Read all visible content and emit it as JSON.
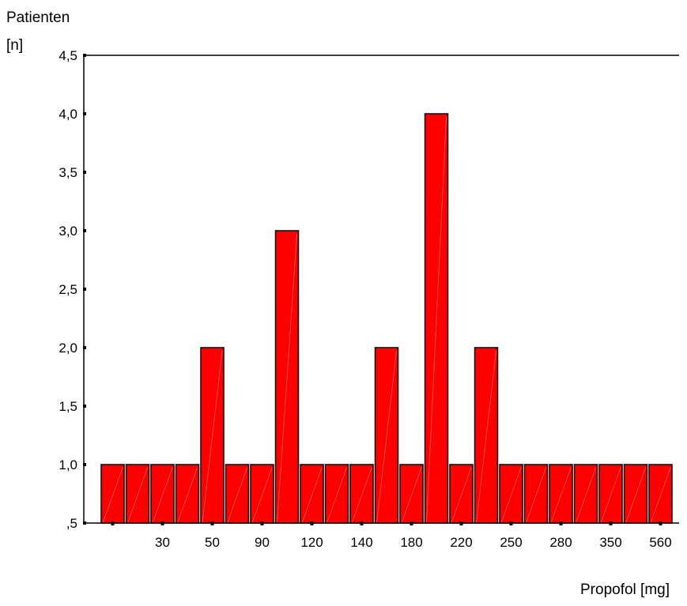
{
  "chart_data": {
    "type": "bar",
    "ylabel_line1": "Patienten",
    "ylabel_line2": "[n]",
    "xlabel": "Propofol [mg]",
    "ylim": [
      0.5,
      4.5
    ],
    "yticks": [
      {
        "value": 0.5,
        "label": ",5"
      },
      {
        "value": 1.0,
        "label": "1,0"
      },
      {
        "value": 1.5,
        "label": "1,5"
      },
      {
        "value": 2.0,
        "label": "2,0"
      },
      {
        "value": 2.5,
        "label": "2,5"
      },
      {
        "value": 3.0,
        "label": "3,0"
      },
      {
        "value": 3.5,
        "label": "3,5"
      },
      {
        "value": 4.0,
        "label": "4,0"
      },
      {
        "value": 4.5,
        "label": "4,5"
      }
    ],
    "xtick_labels": [
      "",
      "30",
      "50",
      "90",
      "120",
      "140",
      "180",
      "220",
      "250",
      "280",
      "350",
      "560"
    ],
    "values": [
      1,
      1,
      1,
      1,
      2,
      1,
      1,
      3,
      1,
      1,
      1,
      2,
      1,
      4,
      1,
      2,
      1,
      1,
      1,
      1,
      1,
      1,
      1
    ],
    "bar_color": "#ff0000",
    "grid": false,
    "legend": "none"
  }
}
